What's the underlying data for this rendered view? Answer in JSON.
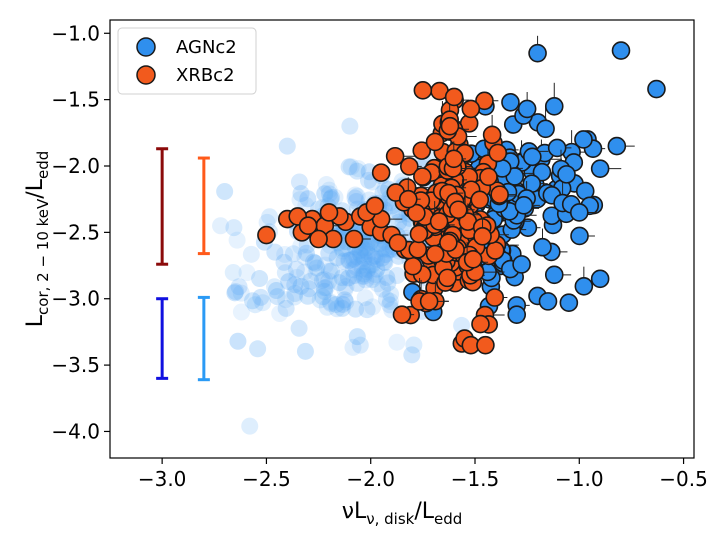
{
  "chart_data": {
    "type": "scatter",
    "xlabel": "νL",
    "xlabel_sub": "ν, disk",
    "xlabel_tail": "/L",
    "xlabel_tail_sub": "edd",
    "ylabel": "L",
    "ylabel_sub": "cor, 2 − 10 keV",
    "ylabel_tail": "/L",
    "ylabel_tail_sub": "edd",
    "xlim": [
      -3.25,
      -0.45
    ],
    "ylim": [
      -4.2,
      -0.9
    ],
    "xticks": [
      -3.0,
      -2.5,
      -2.0,
      -1.5,
      -1.0,
      -0.5
    ],
    "xtick_labels": [
      "−3.0",
      "−2.5",
      "−2.0",
      "−1.5",
      "−1.0",
      "−0.5"
    ],
    "yticks": [
      -1.0,
      -1.5,
      -2.0,
      -2.5,
      -3.0,
      -3.5,
      -4.0
    ],
    "ytick_labels": [
      "−1.0",
      "−1.5",
      "−2.0",
      "−2.5",
      "−3.0",
      "−3.5",
      "−4.0"
    ],
    "legend": {
      "position": "top-left",
      "entries": [
        {
          "label": "AGNc2",
          "color": "#2f8fee"
        },
        {
          "label": "XRBc2",
          "color": "#f25a1d"
        }
      ]
    },
    "colors": {
      "agn": "#2f8fee",
      "agn_faint": "#5aa8f5",
      "xrb": "#f25a1d",
      "edge": "#1a1a1a",
      "bar_darkred": "#8b0a0a",
      "bar_orange": "#ff5a1a",
      "bar_blue": "#1010e0",
      "bar_lightblue": "#2a9af5"
    },
    "error_bars": [
      {
        "name": "xrb-scatter-dark",
        "x": -3.0,
        "ylow": -2.74,
        "yhigh": -1.87,
        "color": "#8b0a0a"
      },
      {
        "name": "xrb-scatter-light",
        "x": -2.8,
        "ylow": -2.66,
        "yhigh": -1.94,
        "color": "#ff5a1a"
      },
      {
        "name": "agn-scatter-dark",
        "x": -3.0,
        "ylow": -3.6,
        "yhigh": -3.0,
        "color": "#1010e0"
      },
      {
        "name": "agn-scatter-light",
        "x": -2.8,
        "ylow": -3.61,
        "yhigh": -2.99,
        "color": "#2a9af5"
      }
    ],
    "series": [
      {
        "name": "AGN background (faint)",
        "style": "faint",
        "generate": {
          "n": 340,
          "seed": 17,
          "xmean": -2.05,
          "xsd": 0.26,
          "ymean": -2.6,
          "ysd": 0.32,
          "xmin": -2.72,
          "xmax": -1.55,
          "ymin": -3.45,
          "ymax": -1.9,
          "corr": 0.3
        },
        "extra_points": [
          [
            -2.58,
            -3.96
          ],
          [
            -2.05,
            -3.35
          ],
          [
            -2.4,
            -1.85
          ],
          [
            -2.1,
            -1.7
          ],
          [
            -2.72,
            -2.45
          ],
          [
            -2.62,
            -3.1
          ]
        ]
      },
      {
        "name": "AGNc2",
        "style": "agn",
        "generate": {
          "n": 150,
          "seed": 29,
          "xmean": -1.38,
          "xsd": 0.17,
          "ymean": -2.28,
          "ysd": 0.3,
          "xmin": -1.85,
          "xmax": -0.82,
          "ymin": -3.1,
          "ymax": -1.5,
          "corr": 0.2
        },
        "extra_points": [
          [
            -1.2,
            -1.15
          ],
          [
            -0.8,
            -1.13
          ],
          [
            -0.63,
            -1.42
          ],
          [
            -1.33,
            -1.52
          ],
          [
            -1.45,
            -1.55
          ],
          [
            -1.25,
            -1.57
          ],
          [
            -1.12,
            -1.55
          ],
          [
            -0.98,
            -1.8
          ],
          [
            -0.82,
            -1.85
          ],
          [
            -0.9,
            -2.02
          ],
          [
            -0.9,
            -2.85
          ],
          [
            -1.12,
            -2.82
          ],
          [
            -1.15,
            -3.02
          ],
          [
            -1.05,
            -3.03
          ],
          [
            -1.3,
            -3.05
          ],
          [
            -1.3,
            -3.12
          ],
          [
            -0.95,
            -2.3
          ],
          [
            -1.0,
            -2.35
          ],
          [
            -1.7,
            -3.1
          ],
          [
            -1.8,
            -2.95
          ]
        ]
      },
      {
        "name": "XRBc2",
        "style": "xrb",
        "generate": {
          "n": 200,
          "seed": 41,
          "xmean": -1.6,
          "xsd": 0.13,
          "ymean": -2.35,
          "ysd": 0.35,
          "xmin": -1.9,
          "xmax": -1.38,
          "ymin": -3.35,
          "ymax": -1.43,
          "corr": 0.1
        },
        "extra_points": [
          [
            -2.5,
            -2.52
          ],
          [
            -2.4,
            -2.4
          ],
          [
            -2.33,
            -2.5
          ],
          [
            -2.28,
            -2.4
          ],
          [
            -2.22,
            -2.45
          ],
          [
            -2.18,
            -2.55
          ],
          [
            -2.12,
            -2.42
          ],
          [
            -2.05,
            -2.38
          ],
          [
            -2.08,
            -2.55
          ],
          [
            -2.0,
            -2.46
          ],
          [
            -1.95,
            -2.5
          ],
          [
            -1.9,
            -2.52
          ],
          [
            -2.25,
            -2.55
          ],
          [
            -2.35,
            -2.38
          ],
          [
            -2.15,
            -2.38
          ],
          [
            -1.95,
            -2.4
          ],
          [
            -1.87,
            -2.58
          ],
          [
            -2.02,
            -2.35
          ],
          [
            -1.75,
            -1.43
          ],
          [
            -1.6,
            -1.48
          ],
          [
            -1.62,
            -1.7
          ],
          [
            -1.52,
            -1.57
          ],
          [
            -1.85,
            -3.12
          ],
          [
            -1.55,
            -3.3
          ],
          [
            -1.52,
            -3.35
          ],
          [
            -1.45,
            -3.35
          ],
          [
            -1.72,
            -3.02
          ],
          [
            -1.95,
            -2.05
          ],
          [
            -1.98,
            -2.3
          ],
          [
            -1.88,
            -2.2
          ],
          [
            -1.82,
            -2.25
          ],
          [
            -2.2,
            -2.35
          ],
          [
            -2.3,
            -2.45
          ]
        ]
      }
    ]
  }
}
